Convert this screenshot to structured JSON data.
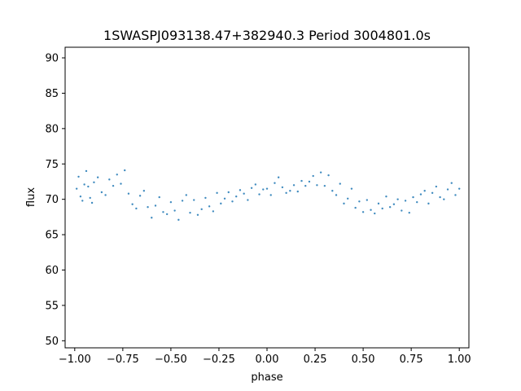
{
  "chart_data": {
    "type": "scatter",
    "title": "1SWASPJ093138.47+382940.3 Period 3004801.0s",
    "xlabel": "phase",
    "ylabel": "flux",
    "xlim": [
      -1.05,
      1.05
    ],
    "ylim": [
      49,
      91.5
    ],
    "x_ticks": [
      -1.0,
      -0.75,
      -0.5,
      -0.25,
      0.0,
      0.25,
      0.5,
      0.75,
      1.0
    ],
    "x_tick_labels": [
      "−1.00",
      "−0.75",
      "−0.50",
      "−0.25",
      "0.00",
      "0.25",
      "0.50",
      "0.75",
      "1.00"
    ],
    "y_ticks": [
      50,
      55,
      60,
      65,
      70,
      75,
      80,
      85,
      90
    ],
    "y_tick_labels": [
      "50",
      "55",
      "60",
      "65",
      "70",
      "75",
      "80",
      "85",
      "90"
    ],
    "grid": false,
    "marker_color": "#1f77b4",
    "phase_folded": true,
    "series": [
      {
        "x": [
          -0.99,
          -0.98,
          -0.97,
          -0.96,
          -0.95,
          -0.94,
          -0.93,
          -0.92,
          -0.91,
          -0.9,
          -0.88,
          -0.86,
          -0.84,
          -0.82,
          -0.8,
          -0.78,
          -0.76,
          -0.74,
          -0.72,
          -0.7,
          -0.68,
          -0.66,
          -0.64,
          -0.62,
          -0.6,
          -0.58,
          -0.56,
          -0.54,
          -0.52,
          -0.5,
          -0.48,
          -0.46,
          -0.44,
          -0.42,
          -0.4,
          -0.38,
          -0.36,
          -0.34,
          -0.32,
          -0.3,
          -0.28,
          -0.26,
          -0.24,
          -0.22,
          -0.2,
          -0.18,
          -0.16,
          -0.14,
          -0.12,
          -0.1,
          -0.08,
          -0.06,
          -0.04,
          -0.02,
          0.0,
          0.02,
          0.04,
          0.06,
          0.08,
          0.1,
          0.12,
          0.14,
          0.16,
          0.18,
          0.2,
          0.22,
          0.24,
          0.26,
          0.28,
          0.3,
          0.32,
          0.34,
          0.36,
          0.38,
          0.4,
          0.42,
          0.44,
          0.46,
          0.48,
          0.5,
          0.52,
          0.54,
          0.56,
          0.58,
          0.6,
          0.62,
          0.64,
          0.66,
          0.68,
          0.7,
          0.72,
          0.74,
          0.76,
          0.78,
          0.8,
          0.82,
          0.84,
          0.86,
          0.88,
          0.9,
          0.92,
          0.94,
          0.96,
          0.98,
          1.0
        ],
        "y": [
          71.5,
          73.2,
          70.4,
          69.8,
          72.1,
          74.0,
          71.8,
          70.2,
          69.5,
          72.4,
          73.1,
          71.0,
          70.6,
          72.8,
          71.9,
          73.5,
          72.2,
          74.1,
          70.8,
          69.3,
          68.7,
          70.5,
          71.2,
          68.9,
          67.4,
          69.1,
          70.3,
          68.2,
          67.9,
          69.6,
          68.4,
          67.1,
          69.8,
          70.6,
          68.1,
          69.9,
          67.8,
          68.6,
          70.2,
          69.0,
          68.3,
          70.9,
          69.4,
          70.1,
          71.0,
          69.7,
          70.4,
          71.3,
          70.8,
          69.9,
          71.6,
          72.1,
          70.7,
          71.4,
          71.5,
          70.6,
          72.3,
          73.1,
          71.7,
          70.9,
          71.2,
          72.0,
          71.1,
          72.6,
          71.9,
          72.5,
          73.3,
          72.0,
          73.8,
          71.9,
          73.4,
          71.2,
          70.6,
          72.2,
          69.4,
          70.1,
          71.5,
          68.8,
          69.7,
          68.2,
          69.9,
          68.5,
          68.0,
          69.4,
          68.7,
          70.4,
          68.9,
          69.3,
          70.0,
          68.4,
          69.8,
          68.1,
          70.3,
          69.6,
          70.7,
          71.2,
          69.4,
          70.9,
          71.8,
          70.3,
          70.0,
          71.4,
          72.3,
          70.6,
          71.5
        ]
      }
    ]
  }
}
